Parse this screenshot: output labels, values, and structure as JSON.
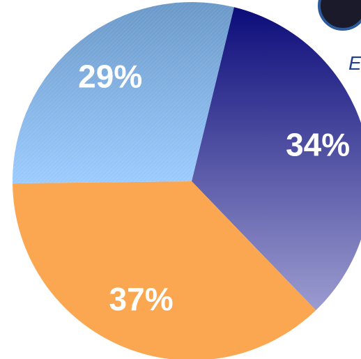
{
  "chart_data": {
    "type": "pie",
    "values": [
      34,
      37,
      29
    ],
    "value_labels": [
      "34%",
      "37%",
      "29%"
    ],
    "colors": [
      [
        "#0c0c7a",
        "#9c9cd0"
      ],
      [
        "#fba752",
        "#fba752"
      ],
      [
        "#6a98c8",
        "#9cccff"
      ]
    ],
    "annotation": "E"
  }
}
